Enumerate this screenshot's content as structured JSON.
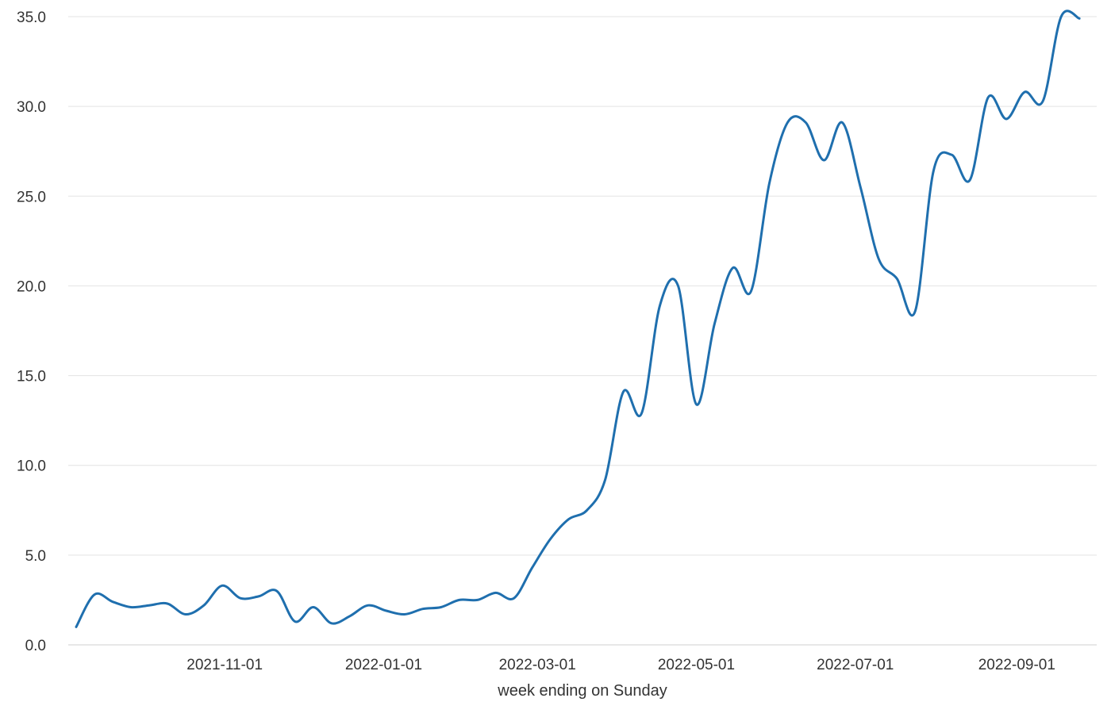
{
  "chart_data": {
    "type": "line",
    "xlabel": "week ending on Sunday",
    "ylabel": "",
    "ylim": [
      0,
      35
    ],
    "yticks": [
      "0.0",
      "5.0",
      "10.0",
      "15.0",
      "20.0",
      "25.0",
      "30.0",
      "35.0"
    ],
    "xticks": [
      "2021-11-01",
      "2022-01-01",
      "2022-03-01",
      "2022-05-01",
      "2022-07-01",
      "2022-09-01"
    ],
    "xlim": [
      "2021-09-05",
      "2022-09-28"
    ],
    "grid": "horizontal",
    "legend": "none",
    "line_color": "#1f6fae",
    "series": [
      {
        "x": [
          "2021-09-05",
          "2021-09-12",
          "2021-09-19",
          "2021-09-26",
          "2021-10-03",
          "2021-10-10",
          "2021-10-17",
          "2021-10-24",
          "2021-10-31",
          "2021-11-07",
          "2021-11-14",
          "2021-11-21",
          "2021-11-28",
          "2021-12-05",
          "2021-12-12",
          "2021-12-19",
          "2021-12-26",
          "2022-01-02",
          "2022-01-09",
          "2022-01-16",
          "2022-01-23",
          "2022-01-30",
          "2022-02-06",
          "2022-02-13",
          "2022-02-20",
          "2022-02-27",
          "2022-03-06",
          "2022-03-13",
          "2022-03-20",
          "2022-03-27",
          "2022-04-03",
          "2022-04-10",
          "2022-04-17",
          "2022-04-24",
          "2022-05-01",
          "2022-05-08",
          "2022-05-15",
          "2022-05-22",
          "2022-05-29",
          "2022-06-05",
          "2022-06-12",
          "2022-06-19",
          "2022-06-26",
          "2022-07-03",
          "2022-07-10",
          "2022-07-17",
          "2022-07-24",
          "2022-07-31",
          "2022-08-07",
          "2022-08-14",
          "2022-08-21",
          "2022-08-28",
          "2022-09-04",
          "2022-09-11",
          "2022-09-18",
          "2022-09-25"
        ],
        "values": [
          1.0,
          2.8,
          2.4,
          2.1,
          2.2,
          2.3,
          1.7,
          2.2,
          3.3,
          2.6,
          2.7,
          3.0,
          1.3,
          2.1,
          1.2,
          1.6,
          2.2,
          1.9,
          1.7,
          2.0,
          2.1,
          2.5,
          2.5,
          2.9,
          2.6,
          4.3,
          5.9,
          7.0,
          7.5,
          9.2,
          14.1,
          12.9,
          18.9,
          20.0,
          13.4,
          17.9,
          21.0,
          19.7,
          25.7,
          29.1,
          29.1,
          27.0,
          29.1,
          25.5,
          21.5,
          20.4,
          18.6,
          26.4,
          27.3,
          25.9,
          30.5,
          29.3,
          30.8,
          30.3,
          35.0,
          34.9
        ]
      }
    ]
  }
}
